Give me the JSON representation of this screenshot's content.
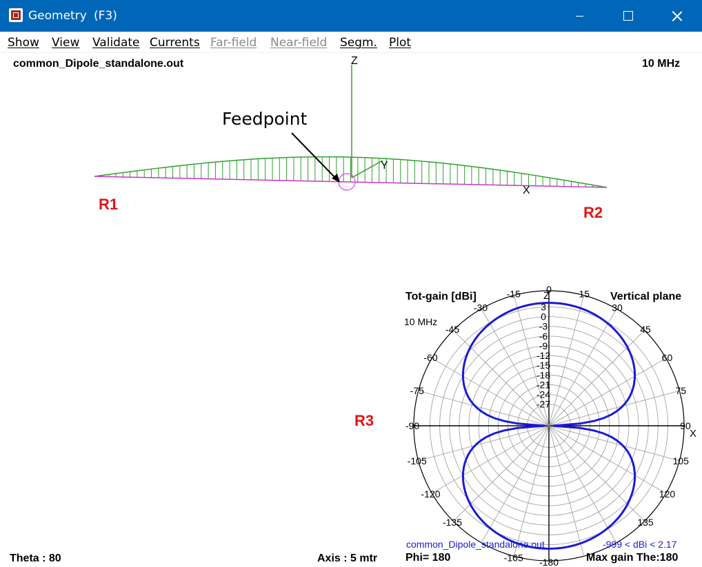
{
  "window": {
    "title": "Geometry",
    "shortcut": "(F3)"
  },
  "menu": [
    "Show",
    "View",
    "Validate",
    "Currents",
    "Far-field",
    "Near-field",
    "Segm.",
    "Plot"
  ],
  "geometry": {
    "filename": "common_Dipole_standalone.out",
    "frequency": "10 MHz",
    "axis_z": "Z",
    "axis_y": "Y",
    "axis_x": "X",
    "annotation": "Feedpoint",
    "regions": [
      "R1",
      "R2",
      "R3"
    ],
    "status_theta": "Theta : 80",
    "status_axis": "Axis : 5 mtr",
    "colors": {
      "current": "#2ea02e",
      "wire": "#cc33cc",
      "feed": "#e040e0",
      "region": "#e01515"
    }
  },
  "chart_data": {
    "type": "polar",
    "title": "Tot-gain [dBi]",
    "plane": "Vertical plane",
    "frequency": "10 MHz",
    "filename": "common_Dipole_standalone.out",
    "range_label": "-999 < dBi < 2.17",
    "phi_label": "Phi= 180",
    "max_gain_label": "Max gain The:180",
    "x_axis_label": "X",
    "z_axis_label": "Z",
    "radial_ticks": [
      "3",
      "0",
      "-3",
      "-6",
      "-9",
      "-12",
      "-15",
      "-18",
      "-21",
      "-24",
      "-27"
    ],
    "angle_ticks": [
      "0",
      "15",
      "30",
      "45",
      "60",
      "75",
      "90",
      "105",
      "120",
      "135",
      "-15",
      "-30",
      "-45",
      "-60",
      "-75",
      "-90",
      "-105",
      "-120",
      "-135",
      "-165",
      "-180"
    ],
    "max_gain_dbi": 2.17,
    "pattern": "dipole figure-eight, nulls at ±90°, max at 0° and 180°",
    "color": "#1a1ad6"
  }
}
